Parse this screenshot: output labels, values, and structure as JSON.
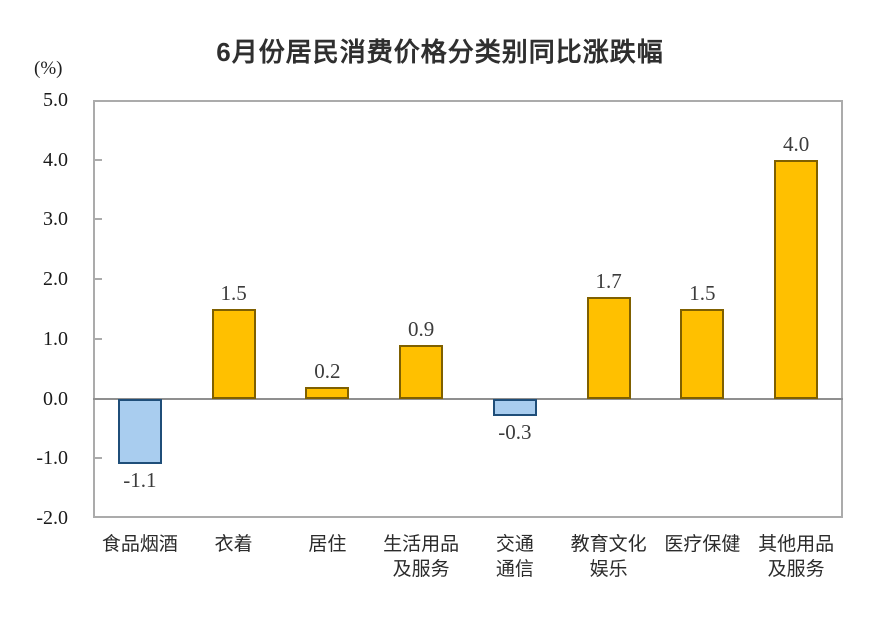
{
  "page": {
    "background": "#ffffff"
  },
  "chart_data": {
    "type": "bar",
    "title": "6月份居民消费价格分类别同比涨跌幅",
    "ylabel": "(%)",
    "xlabel": "",
    "categories": [
      "食品烟酒",
      "衣着",
      "居住",
      "生活用品及服务",
      "交通通信",
      "教育文化娱乐",
      "医疗保健",
      "其他用品及服务"
    ],
    "category_lines": [
      [
        "食品烟酒"
      ],
      [
        "衣着"
      ],
      [
        "居住"
      ],
      [
        "生活用品",
        "及服务"
      ],
      [
        "交通",
        "通信"
      ],
      [
        "教育文化",
        "娱乐"
      ],
      [
        "医疗保健"
      ],
      [
        "其他用品",
        "及服务"
      ]
    ],
    "values": [
      -1.1,
      1.5,
      0.2,
      0.9,
      -0.3,
      1.7,
      1.5,
      4.0
    ],
    "value_labels": [
      "-1.1",
      "1.5",
      "0.2",
      "0.9",
      "-0.3",
      "1.7",
      "1.5",
      "4.0"
    ],
    "ylim": [
      -2.0,
      5.0
    ],
    "yticks": [
      5.0,
      4.0,
      3.0,
      2.0,
      1.0,
      0.0,
      -1.0,
      -2.0
    ],
    "ytick_labels": [
      "5.0",
      "4.0",
      "3.0",
      "2.0",
      "1.0",
      "0.0",
      "-1.0",
      "-2.0"
    ],
    "grid": false,
    "legend": "none",
    "colors": {
      "positive_fill": "#FFC000",
      "positive_border": "#7F6000",
      "negative_fill": "#A9CDEF",
      "negative_border": "#1F4E79",
      "plot_border": "#ABABAB",
      "zero_line": "#8F8F8F",
      "text": "#333333"
    }
  }
}
